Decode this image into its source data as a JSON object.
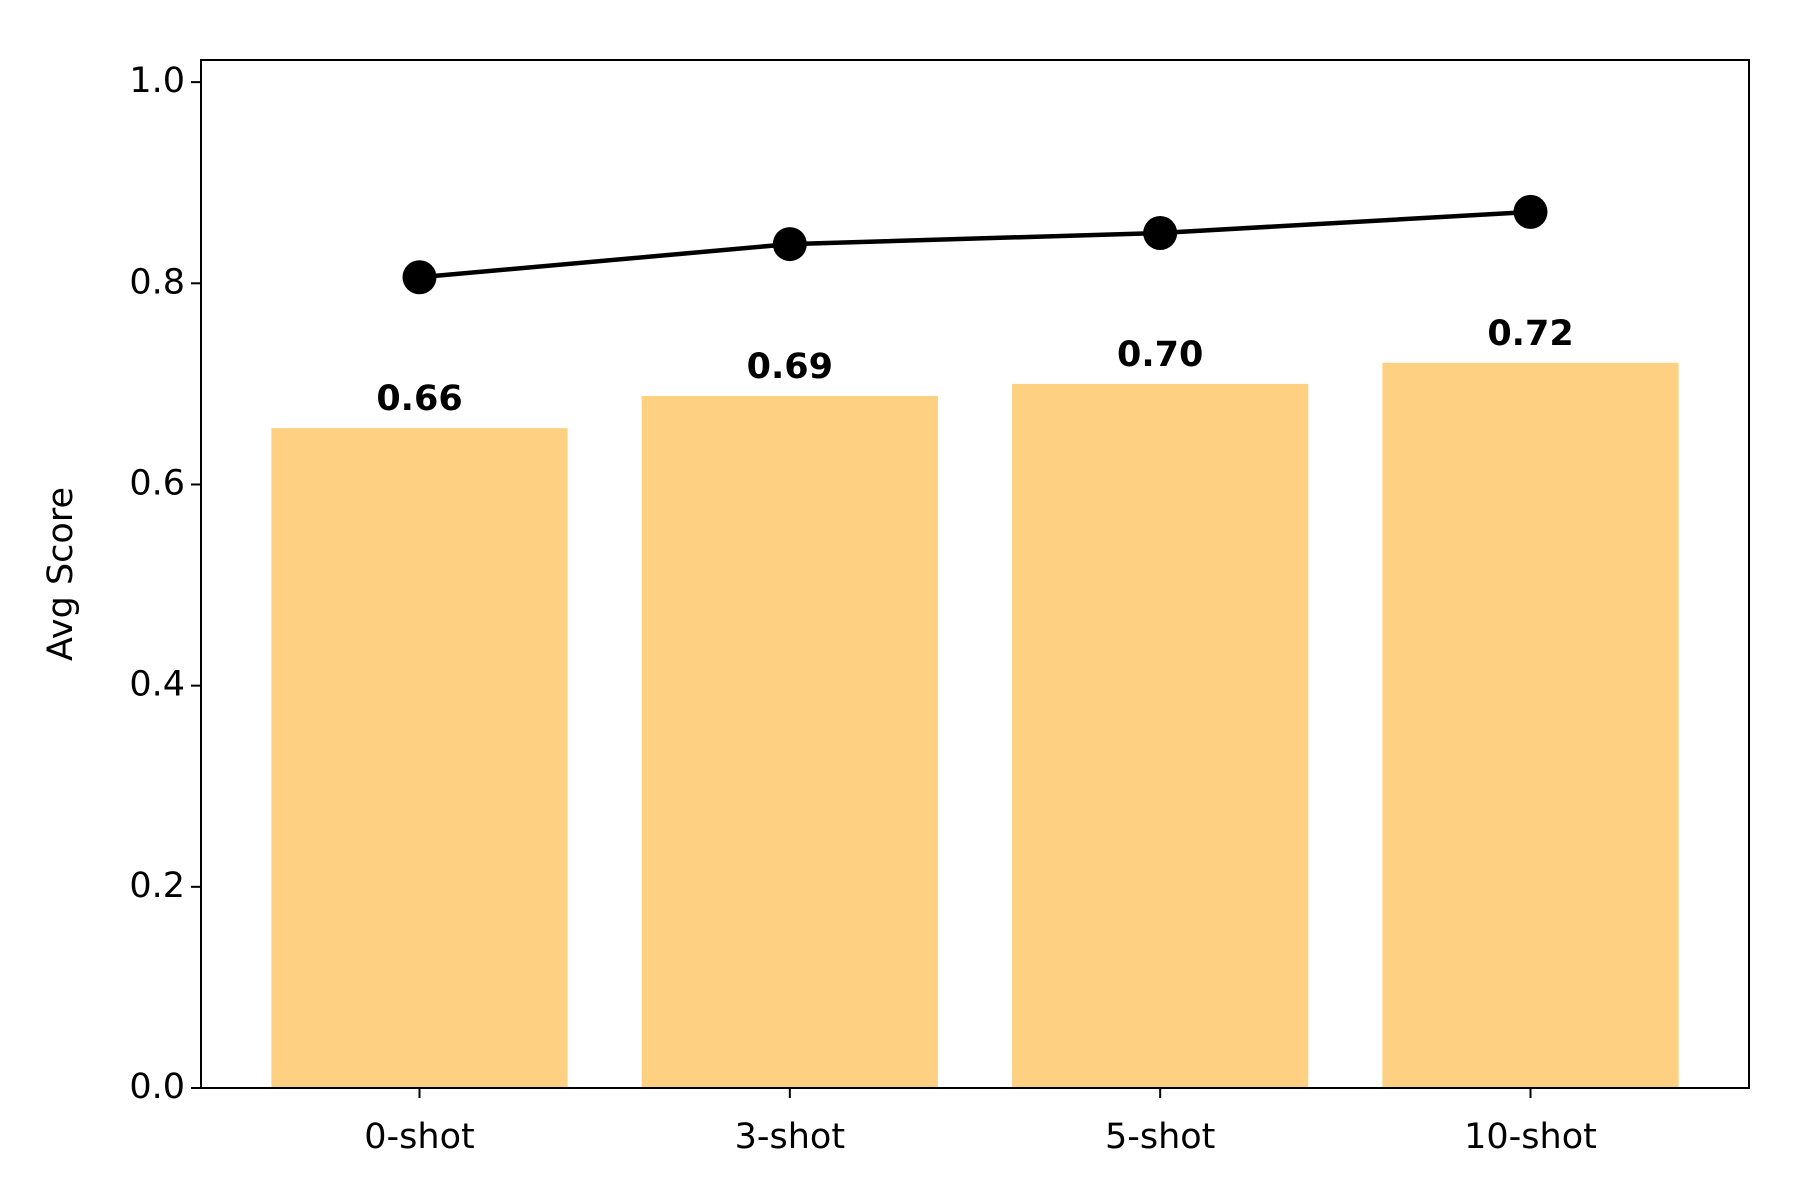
{
  "chart_data": {
    "type": "bar",
    "y_label": "Avg Score",
    "categories": [
      "0-shot",
      "3-shot",
      "5-shot",
      "10-shot"
    ],
    "series": [
      {
        "type": "bar",
        "color": "#fed082",
        "values": [
          0.656,
          0.688,
          0.7,
          0.721
        ],
        "value_labels": [
          "0.66",
          "0.69",
          "0.70",
          "0.72"
        ]
      },
      {
        "type": "line",
        "color": "#000000",
        "values": [
          0.806,
          0.839,
          0.85,
          0.871
        ]
      }
    ],
    "ylim": [
      0,
      1.022
    ],
    "yticks": [
      {
        "value": 0,
        "label": "0.0"
      },
      0.2,
      0.4,
      0.6,
      0.8,
      {
        "value": 1,
        "label": "1.0"
      }
    ]
  }
}
